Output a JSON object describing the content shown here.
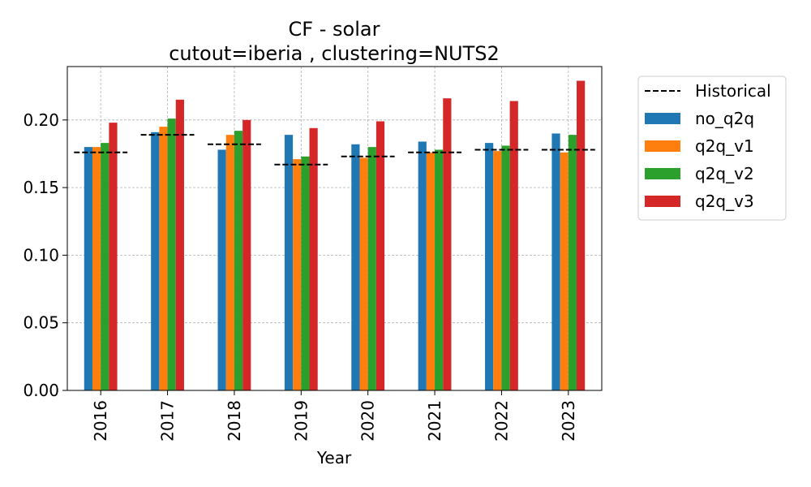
{
  "chart_data": {
    "type": "bar",
    "title": "CF - solar",
    "subtitle": "cutout=iberia , clustering=NUTS2",
    "xlabel": "Year",
    "ylabel": "",
    "categories": [
      "2016",
      "2017",
      "2018",
      "2019",
      "2020",
      "2021",
      "2022",
      "2023"
    ],
    "series": [
      {
        "name": "no_q2q",
        "color": "#1f77b4",
        "values": [
          0.18,
          0.191,
          0.178,
          0.189,
          0.182,
          0.184,
          0.183,
          0.19
        ]
      },
      {
        "name": "q2q_v1",
        "color": "#ff7f0e",
        "values": [
          0.18,
          0.195,
          0.189,
          0.171,
          0.172,
          0.176,
          0.177,
          0.176
        ]
      },
      {
        "name": "q2q_v2",
        "color": "#2ca02c",
        "values": [
          0.183,
          0.201,
          0.192,
          0.173,
          0.18,
          0.178,
          0.181,
          0.189
        ]
      },
      {
        "name": "q2q_v3",
        "color": "#d62728",
        "values": [
          0.198,
          0.215,
          0.2,
          0.194,
          0.199,
          0.216,
          0.214,
          0.229
        ]
      }
    ],
    "historical": {
      "name": "Historical",
      "color": "#000000",
      "style": "dashed",
      "values": [
        0.176,
        0.189,
        0.182,
        0.167,
        0.173,
        0.176,
        0.178,
        0.178
      ]
    },
    "ylim": [
      0,
      0.2395
    ],
    "yticks": [
      {
        "value": 0.0,
        "label": "0.00"
      },
      {
        "value": 0.05,
        "label": "0.05"
      },
      {
        "value": 0.1,
        "label": "0.10"
      },
      {
        "value": 0.15,
        "label": "0.15"
      },
      {
        "value": 0.2,
        "label": "0.20"
      }
    ],
    "grid": true,
    "legend_position": "outside-top-right"
  }
}
